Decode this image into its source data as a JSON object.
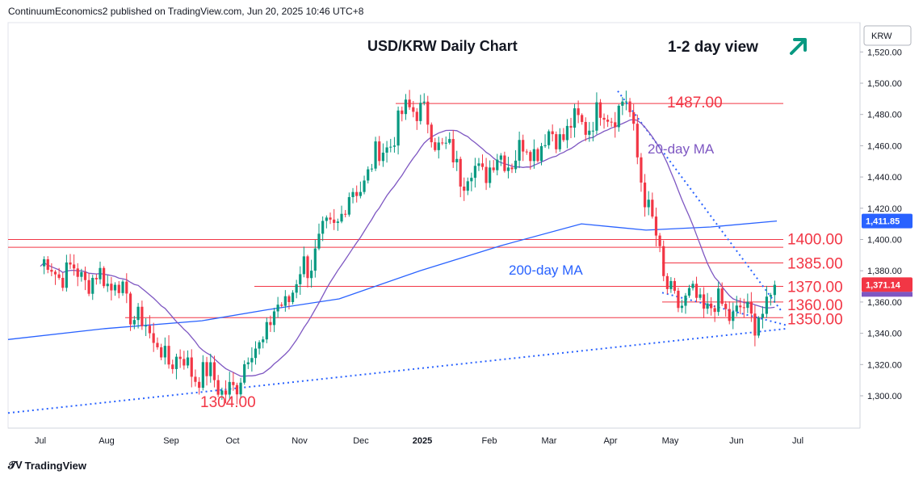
{
  "header": {
    "publisher_text": "ContinuumEconomics2 published on TradingView.com, Jun 20, 2025 10:46 UTC+8"
  },
  "footer": {
    "brand": "TradingView",
    "logo_icon": "tradingview-logo-icon"
  },
  "chart_data": {
    "type": "candlestick",
    "title": "USD/KRW Daily Chart",
    "view_label": "1-2 day view",
    "view_icon": "arrow-up-right-icon",
    "currency_label": "KRW",
    "last_price": "1,371.14",
    "ma200_last": "1,411.85",
    "colors": {
      "up": "#089981",
      "down": "#f23645",
      "ma20": "#7e57c2",
      "ma200": "#2962ff",
      "levels": "#f23645",
      "view_arrow": "#089981",
      "price_badge": "#f23645",
      "ma200_badge": "#2962ff",
      "trendline": "#2962ff"
    },
    "ylim": [
      1280,
      1530
    ],
    "y_ticks": [
      "1,300.00",
      "1,320.00",
      "1,340.00",
      "1,360.00",
      "1,380.00",
      "1,400.00",
      "1,420.00",
      "1,440.00",
      "1,460.00",
      "1,480.00",
      "1,500.00",
      "1,520.00"
    ],
    "x_ticks": [
      "Jul",
      "Aug",
      "Sep",
      "Oct",
      "Nov",
      "Dec",
      "2025",
      "Feb",
      "Mar",
      "Apr",
      "May",
      "Jun",
      "Jul"
    ],
    "levels": [
      {
        "label": "1487.00",
        "value": 1487
      },
      {
        "label": "1400.00",
        "value": 1400
      },
      {
        "label": "1385.00",
        "value": 1385
      },
      {
        "label": "1370.00",
        "value": 1370
      },
      {
        "label": "1360.00",
        "value": 1360
      },
      {
        "label": "1350.00",
        "value": 1350
      }
    ],
    "low_label": {
      "text": "1304.00",
      "value": 1304,
      "date": "Oct"
    },
    "annotations": {
      "ma20": "20-day MA",
      "ma200": "200-day MA"
    },
    "monthly_path": [
      {
        "month": "Jul 2024",
        "price": 1385
      },
      {
        "month": "Aug 2024",
        "price": 1338
      },
      {
        "month": "Sep 2024",
        "price": 1333
      },
      {
        "month": "Oct 2024",
        "price": 1360
      },
      {
        "month": "Nov 2024",
        "price": 1398
      },
      {
        "month": "Dec 2024",
        "price": 1468
      },
      {
        "month": "Jan 2025",
        "price": 1455
      },
      {
        "month": "Feb 2025",
        "price": 1445
      },
      {
        "month": "Mar 2025",
        "price": 1455
      },
      {
        "month": "Apr 2025",
        "price": 1425
      },
      {
        "month": "May 2025",
        "price": 1385
      },
      {
        "month": "Jun 2025",
        "price": 1371
      }
    ],
    "key_points": [
      {
        "date": "2024-07-01",
        "price": 1383
      },
      {
        "date": "2024-08-05",
        "price": 1372
      },
      {
        "date": "2024-08-25",
        "price": 1330
      },
      {
        "date": "2024-09-30",
        "price": 1304
      },
      {
        "date": "2024-11-05",
        "price": 1385
      },
      {
        "date": "2024-12-27",
        "price": 1487
      },
      {
        "date": "2025-01-20",
        "price": 1440
      },
      {
        "date": "2025-04-09",
        "price": 1487
      },
      {
        "date": "2025-04-30",
        "price": 1364
      },
      {
        "date": "2025-06-12",
        "price": 1350
      },
      {
        "date": "2025-06-20",
        "price": 1371
      }
    ]
  }
}
